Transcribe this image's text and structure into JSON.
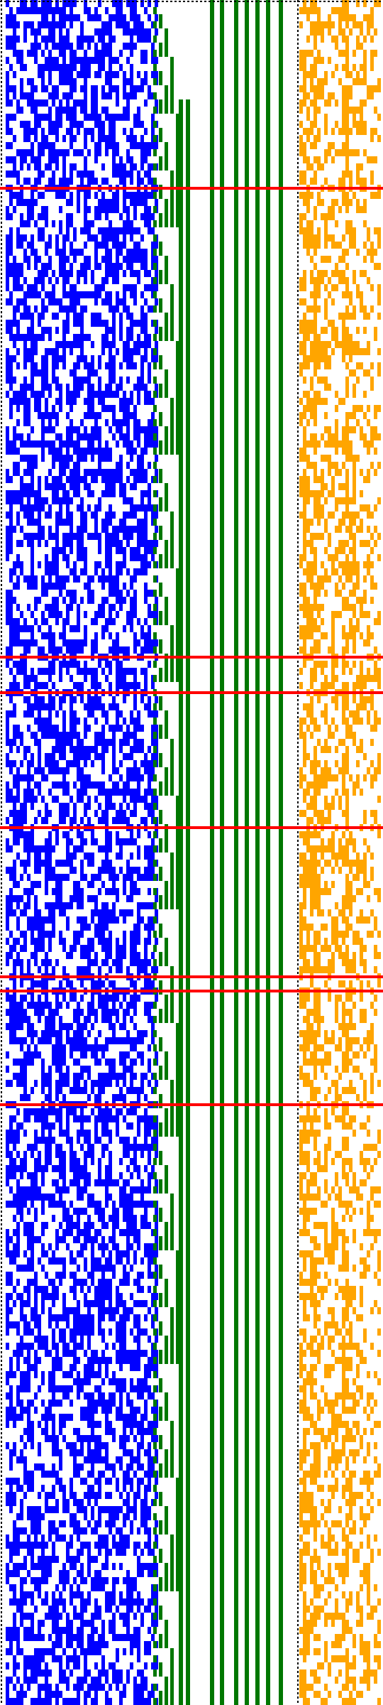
{
  "canvas": {
    "description_free": true
  },
  "colors": {
    "background": "#ffffff",
    "bits": "#0000ff",
    "counter": "#007700",
    "register": "#ffa500",
    "marker": "#ff0000",
    "separator": "#000000"
  },
  "rows": 240,
  "bits_columns": 43,
  "register_columns": 23,
  "marker_rows": [
    26,
    92,
    97,
    116,
    137,
    139,
    155
  ]
}
